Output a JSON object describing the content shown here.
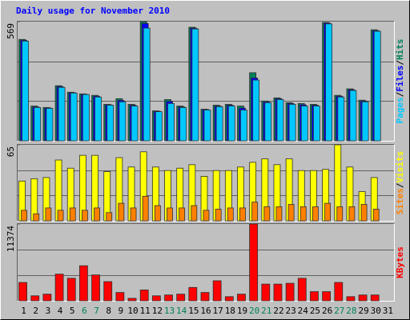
{
  "chart_data": [
    {
      "type": "bar",
      "title": "Daily usage for November 2010",
      "title_color": "#0000ff",
      "ylim": [
        0,
        569
      ],
      "yticks": [
        569
      ],
      "grid_lines": 3,
      "legend_separator": "/",
      "series": [
        {
          "name": "Hits",
          "color": "#00805c",
          "values": [
            484,
            166,
            159,
            263,
            232,
            224,
            217,
            174,
            201,
            174,
            569,
            143,
            197,
            166,
            542,
            151,
            170,
            174,
            166,
            325,
            190,
            205,
            182,
            178,
            174,
            565,
            217,
            248,
            194,
            530,
            0
          ]
        },
        {
          "name": "Files",
          "color": "#0000ff",
          "values": [
            480,
            162,
            157,
            259,
            230,
            222,
            213,
            172,
            193,
            170,
            560,
            141,
            188,
            162,
            538,
            149,
            166,
            170,
            156,
            300,
            186,
            201,
            178,
            172,
            170,
            562,
            213,
            244,
            190,
            526,
            0
          ]
        },
        {
          "name": "Pages",
          "color": "#00c8ff",
          "values": [
            476,
            159,
            155,
            255,
            228,
            221,
            209,
            170,
            186,
            166,
            538,
            139,
            178,
            159,
            534,
            147,
            163,
            166,
            147,
            290,
            182,
            197,
            174,
            166,
            166,
            558,
            209,
            240,
            186,
            523,
            0
          ]
        }
      ]
    },
    {
      "type": "bar",
      "ylim": [
        0,
        65
      ],
      "yticks": [
        65
      ],
      "grid_lines": 3,
      "legend_separator": "/",
      "series": [
        {
          "name": "Visits",
          "color": "#ffff00",
          "values": [
            34,
            36,
            37,
            52,
            45,
            56,
            56,
            42,
            54,
            46,
            59,
            46,
            43,
            45,
            48,
            38,
            43,
            43,
            46,
            50,
            53,
            48,
            53,
            43,
            43,
            44,
            65,
            46,
            25,
            37,
            0
          ]
        },
        {
          "name": "Sites",
          "color": "#ff8000",
          "values": [
            9,
            6,
            11,
            9,
            11,
            9,
            11,
            7,
            15,
            11,
            21,
            13,
            11,
            11,
            13,
            9,
            10,
            11,
            11,
            16,
            12,
            12,
            14,
            12,
            12,
            15,
            12,
            12,
            14,
            10,
            0
          ]
        }
      ]
    },
    {
      "type": "bar",
      "ylim": [
        0,
        11374
      ],
      "yticks": [
        11374
      ],
      "grid_lines": 3,
      "categories": [
        "1",
        "2",
        "3",
        "4",
        "5",
        "6",
        "7",
        "8",
        "9",
        "10",
        "11",
        "12",
        "13",
        "14",
        "15",
        "16",
        "17",
        "18",
        "19",
        "20",
        "21",
        "22",
        "23",
        "24",
        "25",
        "26",
        "27",
        "28",
        "29",
        "30",
        "31"
      ],
      "weekends": [
        "6",
        "7",
        "13",
        "14",
        "20",
        "21",
        "27",
        "28"
      ],
      "weekend_color": "#00805c",
      "series": [
        {
          "name": "KBytes",
          "color": "#ff0000",
          "values": [
            2720,
            742,
            989,
            3956,
            3338,
            5193,
            3833,
            2844,
            1236,
            371,
            1607,
            742,
            865,
            989,
            1978,
            1236,
            2967,
            618,
            989,
            11374,
            2473,
            2473,
            2596,
            3338,
            1360,
            1360,
            2720,
            618,
            865,
            865,
            0
          ]
        }
      ]
    }
  ]
}
